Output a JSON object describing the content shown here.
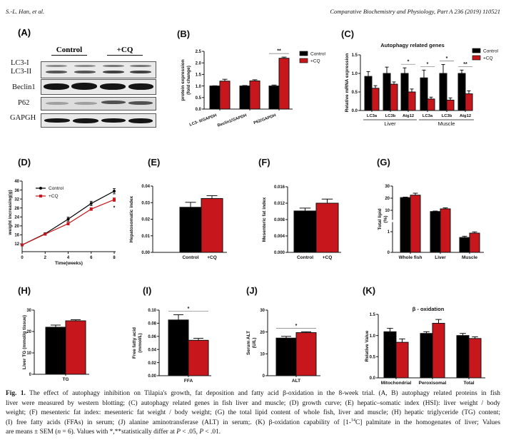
{
  "header": {
    "authors": "S.-L. Han, et al.",
    "journal": "Comparative Biochemistry and Physiology, Part A 236 (2019) 110521"
  },
  "panel_a": {
    "panel": "(A)",
    "groups": [
      "Control",
      "+CQ"
    ],
    "bands": [
      "LC3-I",
      "LC3-II",
      "Beclin1",
      "P62",
      "GAPGH"
    ]
  },
  "colors": {
    "control": "#000000",
    "cq": "#c8161d"
  },
  "chart_data": [
    {
      "panel": "(B)",
      "type": "bar",
      "categories": [
        "LC3- II/GAPDH",
        "Beclin1/GAPDH",
        "P62/GAPDH"
      ],
      "series": [
        {
          "name": "Control",
          "values": [
            1.0,
            1.0,
            1.0
          ],
          "errors": [
            0.01,
            0.02,
            0.04
          ]
        },
        {
          "name": "+CQ",
          "values": [
            1.21,
            1.22,
            2.2
          ],
          "errors": [
            0.08,
            0.05,
            0.05
          ]
        }
      ],
      "ylabel": [
        "protein expression",
        "(fold change)"
      ],
      "ylim": [
        0,
        2.5
      ],
      "yticks": [
        "0.0",
        "0.5",
        "1.0",
        "1.5",
        "2.0",
        "2.5"
      ],
      "legend": "right",
      "significance": [
        {
          "category": 2,
          "label": "**"
        }
      ]
    },
    {
      "panel": "(C)",
      "type": "bar",
      "title": "Autophagy related genes",
      "categories": [
        "LC3a",
        "LC3b",
        "Atg12",
        "LC3a",
        "LC3b",
        "Atg12"
      ],
      "groups": [
        {
          "name": "Liver",
          "from": 0,
          "to": 2
        },
        {
          "name": "Muscle",
          "from": 3,
          "to": 5
        }
      ],
      "series": [
        {
          "name": "Control",
          "values": [
            0.92,
            1.0,
            1.0,
            0.88,
            1.0,
            1.0
          ],
          "errors": [
            0.13,
            0.17,
            0.15,
            0.21,
            0.24,
            0.09
          ]
        },
        {
          "name": "+CQ",
          "values": [
            0.6,
            0.71,
            0.5,
            0.31,
            0.28,
            0.45
          ],
          "errors": [
            0.07,
            0.06,
            0.08,
            0.05,
            0.06,
            0.08
          ]
        }
      ],
      "ylabel": [
        "Relative mRNA expression"
      ],
      "ylim": [
        0,
        1.5
      ],
      "yticks": [
        "0.0",
        "0.5",
        "1.0",
        "1.5"
      ],
      "legend": "right",
      "significance": [
        {
          "category": 2,
          "label": "*"
        },
        {
          "category": 3,
          "label": "*"
        },
        {
          "category": 4,
          "label": "*"
        },
        {
          "category": 5,
          "label": "**"
        }
      ]
    },
    {
      "panel": "(D)",
      "type": "line",
      "x": [
        0,
        2,
        4,
        6,
        8
      ],
      "series": [
        {
          "name": "Control",
          "values": [
            11.5,
            16.5,
            23,
            30,
            35.5
          ],
          "errors": [
            0.4,
            0.4,
            0.9,
            1.0,
            1.2
          ]
        },
        {
          "name": "+CQ",
          "values": [
            11.5,
            16.3,
            21,
            27.5,
            31.7
          ],
          "errors": [
            0.4,
            0.4,
            0.6,
            0.6,
            0.8
          ]
        }
      ],
      "xlabel": "Time(weeks)",
      "ylabel": [
        "weight increasing(g)"
      ],
      "ylim": [
        12,
        40
      ],
      "xlim": [
        0,
        8
      ],
      "yticks": [
        "12",
        "16",
        "20",
        "24",
        "28",
        "32",
        "36",
        "40"
      ],
      "xticks": [
        "0",
        "2",
        "4",
        "6",
        "8"
      ],
      "legend": "top-left",
      "significance": [
        {
          "x": 8,
          "label": "*"
        }
      ]
    },
    {
      "panel": "(E)",
      "type": "bar",
      "categories": [
        "Control",
        "+CQ"
      ],
      "values": [
        0.0272,
        0.0325
      ],
      "errors": [
        0.003,
        0.0017
      ],
      "ylabel": [
        "Hepatosomatic index"
      ],
      "ylim": [
        0,
        0.04
      ],
      "yticks": [
        "0.00",
        "0.01",
        "0.02",
        "0.03",
        "0.04"
      ]
    },
    {
      "panel": "(F)",
      "type": "bar",
      "categories": [
        "Control",
        "+CQ"
      ],
      "values": [
        0.0101,
        0.012
      ],
      "errors": [
        0.0007,
        0.001
      ],
      "ylabel": [
        "Mesenteric fat index"
      ],
      "ylim": [
        0,
        0.016
      ],
      "yticks": [
        "0.000",
        "0.004",
        "0.008",
        "0.012",
        "0.016"
      ]
    },
    {
      "panel": "(G)",
      "type": "bar",
      "categories": [
        "Whole fish",
        "Liver",
        "Muscle"
      ],
      "series": [
        {
          "name": "Control",
          "values": [
            20.5,
            9.0,
            0.72
          ],
          "errors": [
            0.4,
            0.4,
            0.06
          ]
        },
        {
          "name": "+CQ",
          "values": [
            22.5,
            11.2,
            0.93
          ],
          "errors": [
            1.6,
            0.8,
            0.06
          ]
        }
      ],
      "ylabel": [
        "Total lipid",
        "(%)"
      ],
      "ylim": [
        0,
        30
      ],
      "axis_break": true,
      "yticks": [
        "0",
        "1",
        "10",
        "20",
        "30"
      ]
    },
    {
      "panel": "(H)",
      "type": "bar",
      "categories": [
        "TG"
      ],
      "series": [
        {
          "name": "Control",
          "values": [
            22
          ],
          "errors": [
            1.0
          ]
        },
        {
          "name": "+CQ",
          "values": [
            25
          ],
          "errors": [
            0.5
          ]
        }
      ],
      "ylabel": [
        "Liver TG (mmol/g tissue)"
      ],
      "ylim": [
        0,
        30
      ],
      "yticks": [
        "0",
        "10",
        "20",
        "30"
      ]
    },
    {
      "panel": "(I)",
      "type": "bar",
      "categories": [
        "FFA"
      ],
      "series": [
        {
          "name": "Control",
          "values": [
            0.085
          ],
          "errors": [
            0.008
          ]
        },
        {
          "name": "+CQ",
          "values": [
            0.054
          ],
          "errors": [
            0.003
          ]
        }
      ],
      "ylabel": [
        "Free fatty acid",
        "(mmol/L)"
      ],
      "ylim": [
        0,
        0.1
      ],
      "yticks": [
        "0.00",
        "0.02",
        "0.04",
        "0.06",
        "0.08",
        "0.10"
      ],
      "significance": [
        {
          "category": 0,
          "label": "*"
        }
      ]
    },
    {
      "panel": "(J)",
      "type": "bar",
      "categories": [
        "ALT"
      ],
      "series": [
        {
          "name": "Control",
          "values": [
            17.2
          ],
          "errors": [
            0.8
          ]
        },
        {
          "name": "+CQ",
          "values": [
            19.7
          ],
          "errors": [
            0.4
          ]
        }
      ],
      "ylabel": [
        "Serum ALT",
        "(U/L)"
      ],
      "ylim": [
        0,
        30
      ],
      "yticks": [
        "0",
        "10",
        "20",
        "30"
      ],
      "significance": [
        {
          "category": 0,
          "label": "*"
        }
      ]
    },
    {
      "panel": "(K)",
      "type": "bar",
      "title": "β - oxidation",
      "categories": [
        "Mitochondrial",
        "Peroxisomal",
        "Total"
      ],
      "series": [
        {
          "name": "Control",
          "values": [
            1.09,
            1.05,
            1.0
          ],
          "errors": [
            0.08,
            0.04,
            0.05
          ]
        },
        {
          "name": "+CQ",
          "values": [
            0.84,
            1.29,
            0.93
          ],
          "errors": [
            0.08,
            0.09,
            0.04
          ]
        }
      ],
      "ylabel": [
        "Relative Value"
      ],
      "ylim": [
        0,
        1.5
      ],
      "yticks": [
        "0.0",
        "0.5",
        "1.0",
        "1.5"
      ]
    }
  ],
  "caption": {
    "fig": "Fig. 1.",
    "line1": " The effect of autophagy inhibition on Tilapia's growth, fat deposition and fatty acid β-oxidation in the 8-week trial. (A, B) autophagy related proteins in fish",
    "line2": "liver were measured by western blotting; (C) autophagy related genes in fish liver and muscle; (D) growth curve; (E) hepatic–somatic index (HSI): liver weight / body",
    "line3": "weight; (F) mesenteric fat index: mesenteric fat weight / body weight; (G) the total lipid content of whole fish, liver and muscle; (H) hepatic triglyceride (TG) content;",
    "line4a": "(I) free fatty acids (FFAs) in serum; (J) alanine aminotransferase (ALT) in serum;. (K) β-oxidation capability of [1-",
    "line4sup": "14",
    "line4b": "C] palmitate in the homogenates of liver; Values",
    "line5a": "are means ± SEM (",
    "line5n": "n",
    "line5b": " = 6). Values with *,**statistically differ at ",
    "line5p1": "P",
    "line5c": " < .05, ",
    "line5p2": "P",
    "line5d": " < .01."
  }
}
